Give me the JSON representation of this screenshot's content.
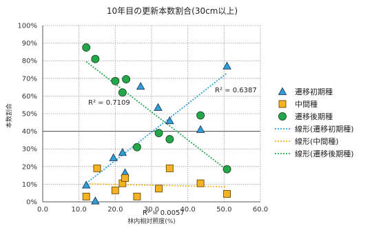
{
  "chart_data": {
    "type": "scatter",
    "title": "10年目の更新本数割合(30cm以上)",
    "xlabel": "林内相対照度(%)",
    "ylabel": "本数割合",
    "xlim": [
      0,
      60
    ],
    "ylim": [
      0,
      100
    ],
    "x_ticks": [
      "0.0",
      "10.0",
      "20.0",
      "30.0",
      "40.0",
      "50.0",
      "60.0"
    ],
    "y_ticks": [
      "0%",
      "10%",
      "20%",
      "30%",
      "40%",
      "50%",
      "60%",
      "70%",
      "80%",
      "90%",
      "100%"
    ],
    "grid": "dotted",
    "legend_position": "right",
    "series": [
      {
        "name": "遷移初期種",
        "marker": "triangle",
        "color": "#2e9fd8",
        "points": [
          [
            12.0,
            9.5
          ],
          [
            14.5,
            0.5
          ],
          [
            19.5,
            25.0
          ],
          [
            22.0,
            28.0
          ],
          [
            22.7,
            16.5
          ],
          [
            27.0,
            65.5
          ],
          [
            31.8,
            53.5
          ],
          [
            35.0,
            46.0
          ],
          [
            43.5,
            41.0
          ],
          [
            50.8,
            77.0
          ]
        ]
      },
      {
        "name": "中間種",
        "marker": "square",
        "color": "#f5b324",
        "points": [
          [
            12.0,
            3.0
          ],
          [
            15.0,
            19.0
          ],
          [
            20.0,
            6.5
          ],
          [
            22.0,
            10.5
          ],
          [
            22.7,
            13.5
          ],
          [
            26.0,
            3.0
          ],
          [
            32.0,
            7.5
          ],
          [
            35.0,
            19.0
          ],
          [
            43.5,
            10.5
          ],
          [
            50.8,
            4.5
          ]
        ]
      },
      {
        "name": "遷移後期種",
        "marker": "circle",
        "color": "#22a84a",
        "points": [
          [
            12.0,
            87.5
          ],
          [
            14.5,
            81.0
          ],
          [
            20.0,
            68.5
          ],
          [
            22.0,
            62.0
          ],
          [
            23.0,
            69.5
          ],
          [
            26.0,
            31.0
          ],
          [
            32.0,
            39.0
          ],
          [
            35.0,
            35.5
          ],
          [
            43.5,
            49.0
          ],
          [
            50.8,
            18.5
          ]
        ]
      }
    ],
    "trendlines": [
      {
        "name": "線形(遷移初期種)",
        "color": "#2e9fd8",
        "from": [
          12.0,
          10.5
        ],
        "to": [
          50.8,
          73.0
        ],
        "r2_label": "R² = 0.6387"
      },
      {
        "name": "線形(中間種)",
        "color": "#f5b324",
        "from": [
          12.0,
          10.2
        ],
        "to": [
          50.8,
          8.5
        ],
        "r2_label": "R² = 0.0057"
      },
      {
        "name": "線形(遷移後期種)",
        "color": "#22a84a",
        "from": [
          12.0,
          79.5
        ],
        "to": [
          50.8,
          18.0
        ],
        "r2_label": "R² = 0.7109"
      }
    ]
  }
}
